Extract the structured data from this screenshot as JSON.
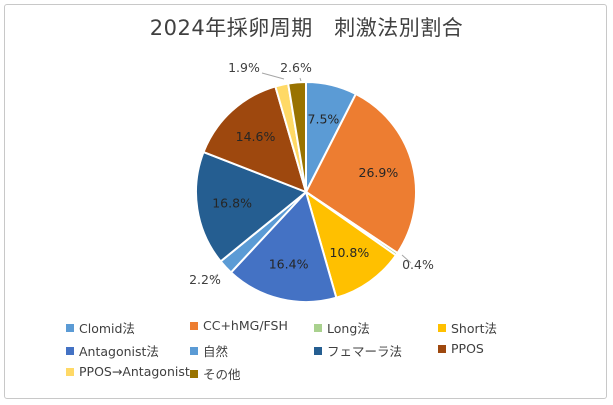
{
  "chart_data": {
    "type": "pie",
    "title": "2024年採卵周期　刺激法別割合",
    "categories": [
      "Clomid法",
      "CC+hMG/FSH",
      "Long法",
      "Short法",
      "Antagonist法",
      "自然",
      "フェマーラ法",
      "PPOS",
      "PPOS→Antagonist",
      "その他"
    ],
    "values": [
      7.5,
      26.9,
      0.4,
      10.8,
      16.4,
      2.2,
      16.8,
      14.6,
      1.9,
      2.6
    ],
    "labels": [
      "7.5%",
      "26.9%",
      "0.4%",
      "10.8%",
      "16.4%",
      "2.2%",
      "16.8%",
      "14.6%",
      "1.9%",
      "2.6%"
    ],
    "colors": [
      "#5b9bd5",
      "#ed7d31",
      "#a9d18e",
      "#ffc000",
      "#4472c4",
      "#5b9bd5",
      "#255e91",
      "#9e480e",
      "#ffd966",
      "#997300"
    ],
    "legend_position": "bottom"
  }
}
